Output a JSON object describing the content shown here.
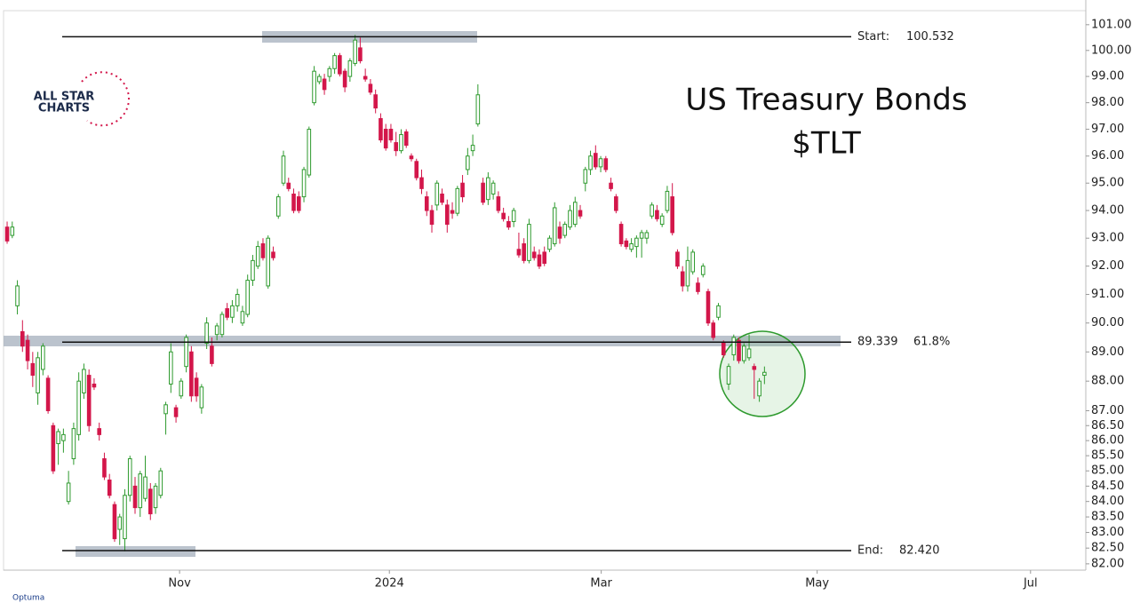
{
  "chart_data": {
    "type": "candlestick",
    "title": "US Treasury Bonds",
    "subtitle": "$TLT",
    "logo_text": [
      "ALL STAR",
      "CHARTS"
    ],
    "watermark": "Optuma",
    "up_color": "#2e9a2e",
    "down_color": "#d3164a",
    "log_scale": true,
    "grid": false,
    "ylim": [
      81.8,
      101.55
    ],
    "yticks": [
      {
        "value": 82,
        "label": "82.00"
      },
      {
        "value": 82.5,
        "label": "82.50"
      },
      {
        "value": 83,
        "label": "83.00"
      },
      {
        "value": 83.5,
        "label": "83.50"
      },
      {
        "value": 84,
        "label": "84.00"
      },
      {
        "value": 84.5,
        "label": "84.50"
      },
      {
        "value": 85,
        "label": "85.00"
      },
      {
        "value": 85.5,
        "label": "85.50"
      },
      {
        "value": 86,
        "label": "86.00"
      },
      {
        "value": 86.5,
        "label": "86.50"
      },
      {
        "value": 87,
        "label": "87.00"
      },
      {
        "value": 88,
        "label": "88.00"
      },
      {
        "value": 89,
        "label": "89.00"
      },
      {
        "value": 90,
        "label": "90.00"
      },
      {
        "value": 91,
        "label": "91.00"
      },
      {
        "value": 92,
        "label": "92.00"
      },
      {
        "value": 93,
        "label": "93.00"
      },
      {
        "value": 94,
        "label": "94.00"
      },
      {
        "value": 95,
        "label": "95.00"
      },
      {
        "value": 96,
        "label": "96.00"
      },
      {
        "value": 97,
        "label": "97.00"
      },
      {
        "value": 98,
        "label": "98.00"
      },
      {
        "value": 99,
        "label": "99.00"
      },
      {
        "value": 100,
        "label": "100.00"
      },
      {
        "value": 101,
        "label": "101.00"
      }
    ],
    "xlim": [
      -0.7,
      210.8
    ],
    "xticks": [
      {
        "value": 33.7,
        "label": "Nov"
      },
      {
        "value": 74.7,
        "label": "2024"
      },
      {
        "value": 116.1,
        "label": "Mar"
      },
      {
        "value": 158.3,
        "label": "May"
      },
      {
        "value": 200.0,
        "label": "Jul"
      }
    ],
    "levels": [
      {
        "name": "Start:",
        "value": 100.532
      },
      {
        "name": "61.8%",
        "value": 89.339
      },
      {
        "name": "End:",
        "value": 82.42,
        "value_label": "82.420"
      }
    ],
    "candles": [
      [
        93.4,
        93.6,
        92.8,
        92.9
      ],
      [
        93.1,
        93.6,
        93.0,
        93.4
      ],
      [
        90.6,
        91.5,
        90.3,
        91.3
      ],
      [
        89.7,
        90.1,
        89.0,
        89.2
      ],
      [
        89.4,
        89.6,
        88.4,
        88.7
      ],
      [
        88.6,
        89.0,
        87.8,
        88.2
      ],
      [
        87.6,
        89.0,
        87.2,
        88.8
      ],
      [
        88.4,
        89.3,
        88.2,
        89.2
      ],
      [
        88.1,
        88.2,
        86.9,
        87.0
      ],
      [
        86.5,
        86.6,
        84.9,
        85.0
      ],
      [
        85.9,
        86.4,
        85.2,
        86.3
      ],
      [
        86.0,
        86.4,
        85.6,
        86.2
      ],
      [
        84.0,
        85.0,
        83.9,
        84.6
      ],
      [
        85.4,
        86.6,
        85.2,
        86.4
      ],
      [
        86.2,
        88.3,
        86.0,
        88.0
      ],
      [
        87.6,
        88.6,
        87.4,
        88.4
      ],
      [
        88.2,
        88.4,
        86.3,
        86.5
      ],
      [
        87.9,
        88.1,
        87.7,
        87.8
      ],
      [
        86.4,
        86.6,
        86.0,
        86.2
      ],
      [
        85.4,
        85.6,
        84.7,
        84.8
      ],
      [
        84.7,
        84.9,
        84.1,
        84.2
      ],
      [
        83.9,
        84.0,
        82.7,
        82.8
      ],
      [
        83.1,
        83.6,
        82.6,
        83.5
      ],
      [
        82.8,
        84.4,
        82.4,
        84.2
      ],
      [
        84.2,
        85.5,
        84.0,
        85.4
      ],
      [
        84.5,
        84.8,
        83.6,
        83.8
      ],
      [
        83.8,
        85.0,
        83.5,
        84.9
      ],
      [
        84.1,
        85.5,
        84.0,
        84.8
      ],
      [
        84.4,
        84.6,
        83.4,
        83.6
      ],
      [
        83.8,
        84.6,
        83.6,
        84.5
      ],
      [
        84.2,
        85.1,
        84.1,
        85.0
      ],
      [
        86.9,
        87.3,
        86.2,
        87.2
      ],
      [
        87.9,
        89.3,
        87.6,
        89.0
      ],
      [
        87.1,
        87.2,
        86.6,
        86.8
      ],
      [
        87.5,
        88.1,
        87.4,
        88.0
      ],
      [
        88.5,
        89.6,
        88.3,
        89.5
      ],
      [
        89.0,
        89.2,
        87.3,
        87.5
      ],
      [
        88.1,
        88.3,
        87.3,
        87.5
      ],
      [
        87.1,
        87.9,
        86.9,
        87.8
      ],
      [
        89.3,
        90.2,
        89.1,
        90.0
      ],
      [
        89.2,
        89.5,
        88.5,
        88.6
      ],
      [
        89.6,
        90.0,
        89.4,
        89.9
      ],
      [
        89.6,
        90.4,
        89.5,
        90.3
      ],
      [
        90.5,
        90.7,
        90.1,
        90.2
      ],
      [
        90.2,
        90.8,
        90.0,
        90.6
      ],
      [
        90.6,
        91.2,
        90.4,
        91.0
      ],
      [
        90.0,
        90.6,
        89.9,
        90.4
      ],
      [
        90.3,
        91.7,
        90.2,
        91.5
      ],
      [
        91.5,
        92.4,
        91.3,
        92.2
      ],
      [
        92.0,
        92.9,
        91.9,
        92.7
      ],
      [
        92.8,
        93.0,
        92.2,
        92.3
      ],
      [
        91.3,
        93.1,
        91.2,
        93.0
      ],
      [
        92.5,
        92.7,
        92.2,
        92.3
      ],
      [
        93.8,
        94.6,
        93.7,
        94.5
      ],
      [
        95.0,
        96.2,
        94.9,
        96.0
      ],
      [
        95.0,
        95.2,
        94.7,
        94.8
      ],
      [
        94.6,
        94.8,
        93.9,
        94.0
      ],
      [
        94.5,
        94.7,
        93.9,
        94.0
      ],
      [
        94.5,
        95.6,
        94.3,
        95.5
      ],
      [
        95.3,
        97.1,
        95.2,
        97.0
      ],
      [
        98.0,
        99.4,
        97.9,
        99.2
      ],
      [
        98.8,
        99.1,
        98.7,
        99.0
      ],
      [
        98.9,
        99.1,
        98.3,
        98.5
      ],
      [
        99.0,
        99.4,
        98.8,
        99.3
      ],
      [
        99.3,
        99.9,
        99.1,
        99.8
      ],
      [
        99.8,
        99.9,
        99.0,
        99.1
      ],
      [
        99.2,
        99.3,
        98.4,
        98.6
      ],
      [
        99.0,
        99.7,
        98.8,
        99.6
      ],
      [
        99.5,
        100.6,
        99.4,
        100.4
      ],
      [
        100.1,
        100.5,
        99.5,
        99.6
      ],
      [
        99.0,
        99.3,
        98.8,
        98.9
      ],
      [
        98.7,
        98.9,
        98.3,
        98.4
      ],
      [
        98.3,
        98.5,
        97.6,
        97.8
      ],
      [
        97.4,
        97.6,
        96.5,
        96.6
      ],
      [
        97.0,
        97.2,
        96.2,
        96.3
      ],
      [
        97.0,
        97.2,
        96.5,
        96.6
      ],
      [
        96.5,
        96.9,
        96.0,
        96.2
      ],
      [
        96.2,
        97.0,
        96.1,
        96.8
      ],
      [
        96.9,
        97.0,
        96.3,
        96.4
      ],
      [
        96.0,
        96.1,
        95.8,
        95.9
      ],
      [
        95.8,
        95.9,
        95.1,
        95.2
      ],
      [
        95.2,
        95.5,
        94.6,
        94.8
      ],
      [
        94.5,
        94.7,
        93.8,
        94.0
      ],
      [
        94.0,
        94.2,
        93.2,
        93.5
      ],
      [
        94.2,
        95.1,
        94.0,
        95.0
      ],
      [
        94.6,
        94.8,
        94.2,
        94.3
      ],
      [
        94.2,
        94.4,
        93.2,
        93.5
      ],
      [
        94.0,
        94.3,
        93.7,
        93.9
      ],
      [
        93.9,
        94.9,
        93.8,
        94.8
      ],
      [
        95.0,
        95.3,
        94.3,
        94.5
      ],
      [
        95.5,
        96.3,
        95.3,
        96.0
      ],
      [
        96.2,
        96.8,
        96.0,
        96.4
      ],
      [
        97.2,
        98.7,
        97.1,
        98.3
      ],
      [
        95.0,
        95.2,
        94.2,
        94.3
      ],
      [
        94.4,
        95.4,
        94.2,
        95.2
      ],
      [
        94.6,
        95.1,
        94.4,
        95.0
      ],
      [
        94.5,
        94.7,
        93.9,
        94.0
      ],
      [
        93.9,
        94.1,
        93.6,
        93.7
      ],
      [
        93.6,
        93.8,
        93.3,
        93.4
      ],
      [
        93.6,
        94.1,
        93.4,
        94.0
      ],
      [
        92.6,
        93.2,
        92.3,
        92.4
      ],
      [
        92.8,
        93.0,
        92.1,
        92.2
      ],
      [
        92.2,
        93.7,
        92.1,
        93.5
      ],
      [
        92.5,
        92.7,
        92.2,
        92.3
      ],
      [
        92.4,
        92.6,
        91.9,
        92.0
      ],
      [
        92.5,
        92.7,
        92.0,
        92.1
      ],
      [
        92.6,
        93.1,
        92.5,
        93.0
      ],
      [
        92.8,
        94.3,
        92.7,
        94.1
      ],
      [
        93.4,
        93.6,
        92.8,
        93.0
      ],
      [
        93.1,
        93.6,
        93.0,
        93.5
      ],
      [
        93.4,
        94.2,
        93.3,
        94.0
      ],
      [
        93.5,
        94.5,
        93.4,
        94.3
      ],
      [
        94.0,
        94.2,
        93.7,
        93.8
      ],
      [
        95.0,
        95.6,
        94.7,
        95.5
      ],
      [
        95.5,
        96.2,
        95.3,
        96.0
      ],
      [
        96.1,
        96.4,
        95.5,
        95.6
      ],
      [
        95.6,
        96.0,
        95.4,
        95.9
      ],
      [
        95.9,
        96.0,
        95.4,
        95.5
      ],
      [
        95.0,
        95.2,
        94.7,
        94.8
      ],
      [
        94.5,
        94.6,
        93.9,
        94.0
      ],
      [
        93.5,
        93.6,
        92.7,
        92.8
      ],
      [
        92.9,
        93.0,
        92.6,
        92.7
      ],
      [
        92.6,
        93.0,
        92.5,
        92.8
      ],
      [
        92.7,
        93.1,
        92.3,
        93.0
      ],
      [
        93.0,
        93.3,
        92.3,
        93.2
      ],
      [
        93.0,
        93.3,
        92.8,
        93.2
      ],
      [
        93.8,
        94.3,
        93.7,
        94.2
      ],
      [
        94.0,
        94.2,
        93.6,
        93.7
      ],
      [
        93.5,
        93.9,
        93.4,
        93.8
      ],
      [
        94.0,
        94.9,
        93.9,
        94.7
      ],
      [
        94.5,
        95.0,
        93.1,
        93.2
      ],
      [
        92.5,
        92.6,
        91.9,
        92.0
      ],
      [
        91.8,
        92.0,
        91.1,
        91.3
      ],
      [
        91.3,
        92.7,
        91.1,
        92.2
      ],
      [
        91.8,
        92.6,
        91.7,
        92.5
      ],
      [
        91.4,
        91.6,
        91.0,
        91.1
      ],
      [
        91.7,
        92.1,
        91.6,
        92.0
      ],
      [
        91.1,
        91.2,
        89.9,
        90.0
      ],
      [
        90.0,
        90.1,
        89.4,
        89.5
      ],
      [
        90.2,
        90.7,
        90.1,
        90.6
      ],
      [
        89.3,
        89.4,
        88.8,
        88.9
      ],
      [
        87.9,
        88.6,
        87.7,
        88.5
      ],
      [
        88.9,
        89.6,
        88.7,
        89.5
      ],
      [
        89.4,
        89.5,
        88.6,
        88.7
      ],
      [
        88.7,
        89.3,
        88.6,
        89.2
      ],
      [
        88.8,
        89.6,
        88.7,
        89.1
      ],
      [
        88.5,
        88.6,
        87.4,
        88.4
      ],
      [
        87.5,
        88.1,
        87.3,
        88.0
      ],
      [
        88.2,
        88.5,
        87.9,
        88.3
      ]
    ]
  }
}
